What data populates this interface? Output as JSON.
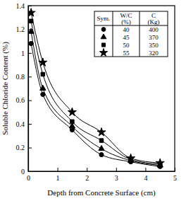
{
  "chart_data": {
    "type": "line",
    "x_label": "Depth from Concrete Surface (cm)",
    "y_label": "Soluble Chloride Content (%)",
    "x": [
      0.1,
      0.5,
      1.5,
      2.5,
      3.5,
      4.5
    ],
    "series": [
      {
        "name": "40",
        "cement": 400,
        "marker": "circle",
        "color": "#000000",
        "line_style": "solid",
        "values": [
          1.08,
          0.65,
          0.35,
          0.14,
          0.08,
          0.04
        ]
      },
      {
        "name": "45",
        "cement": 370,
        "marker": "triangle",
        "color": "#000000",
        "line_style": "solid",
        "values": [
          1.18,
          0.7,
          0.38,
          0.19,
          0.09,
          0.05
        ]
      },
      {
        "name": "50",
        "cement": 350,
        "marker": "square",
        "color": "#000000",
        "line_style": "solid",
        "values": [
          1.27,
          0.82,
          0.42,
          0.26,
          0.1,
          0.06
        ]
      },
      {
        "name": "55",
        "cement": 320,
        "marker": "star",
        "color": "#000000",
        "line_style": "solid",
        "values": [
          1.34,
          0.92,
          0.5,
          0.33,
          0.11,
          0.07
        ]
      }
    ],
    "legend_columns": [
      {
        "label": "Sym."
      },
      {
        "label": "W/C",
        "unit": "(%)"
      },
      {
        "label": "C",
        "unit": "(Kg)"
      }
    ],
    "xlim": [
      0,
      5
    ],
    "ylim": [
      0,
      1.4
    ],
    "xticks": [
      0,
      1,
      2,
      3,
      4,
      5
    ],
    "yticks": [
      0,
      0.2,
      0.4,
      0.6,
      0.8,
      1,
      1.2,
      1.4
    ],
    "legend": "upper right",
    "grid": false
  }
}
